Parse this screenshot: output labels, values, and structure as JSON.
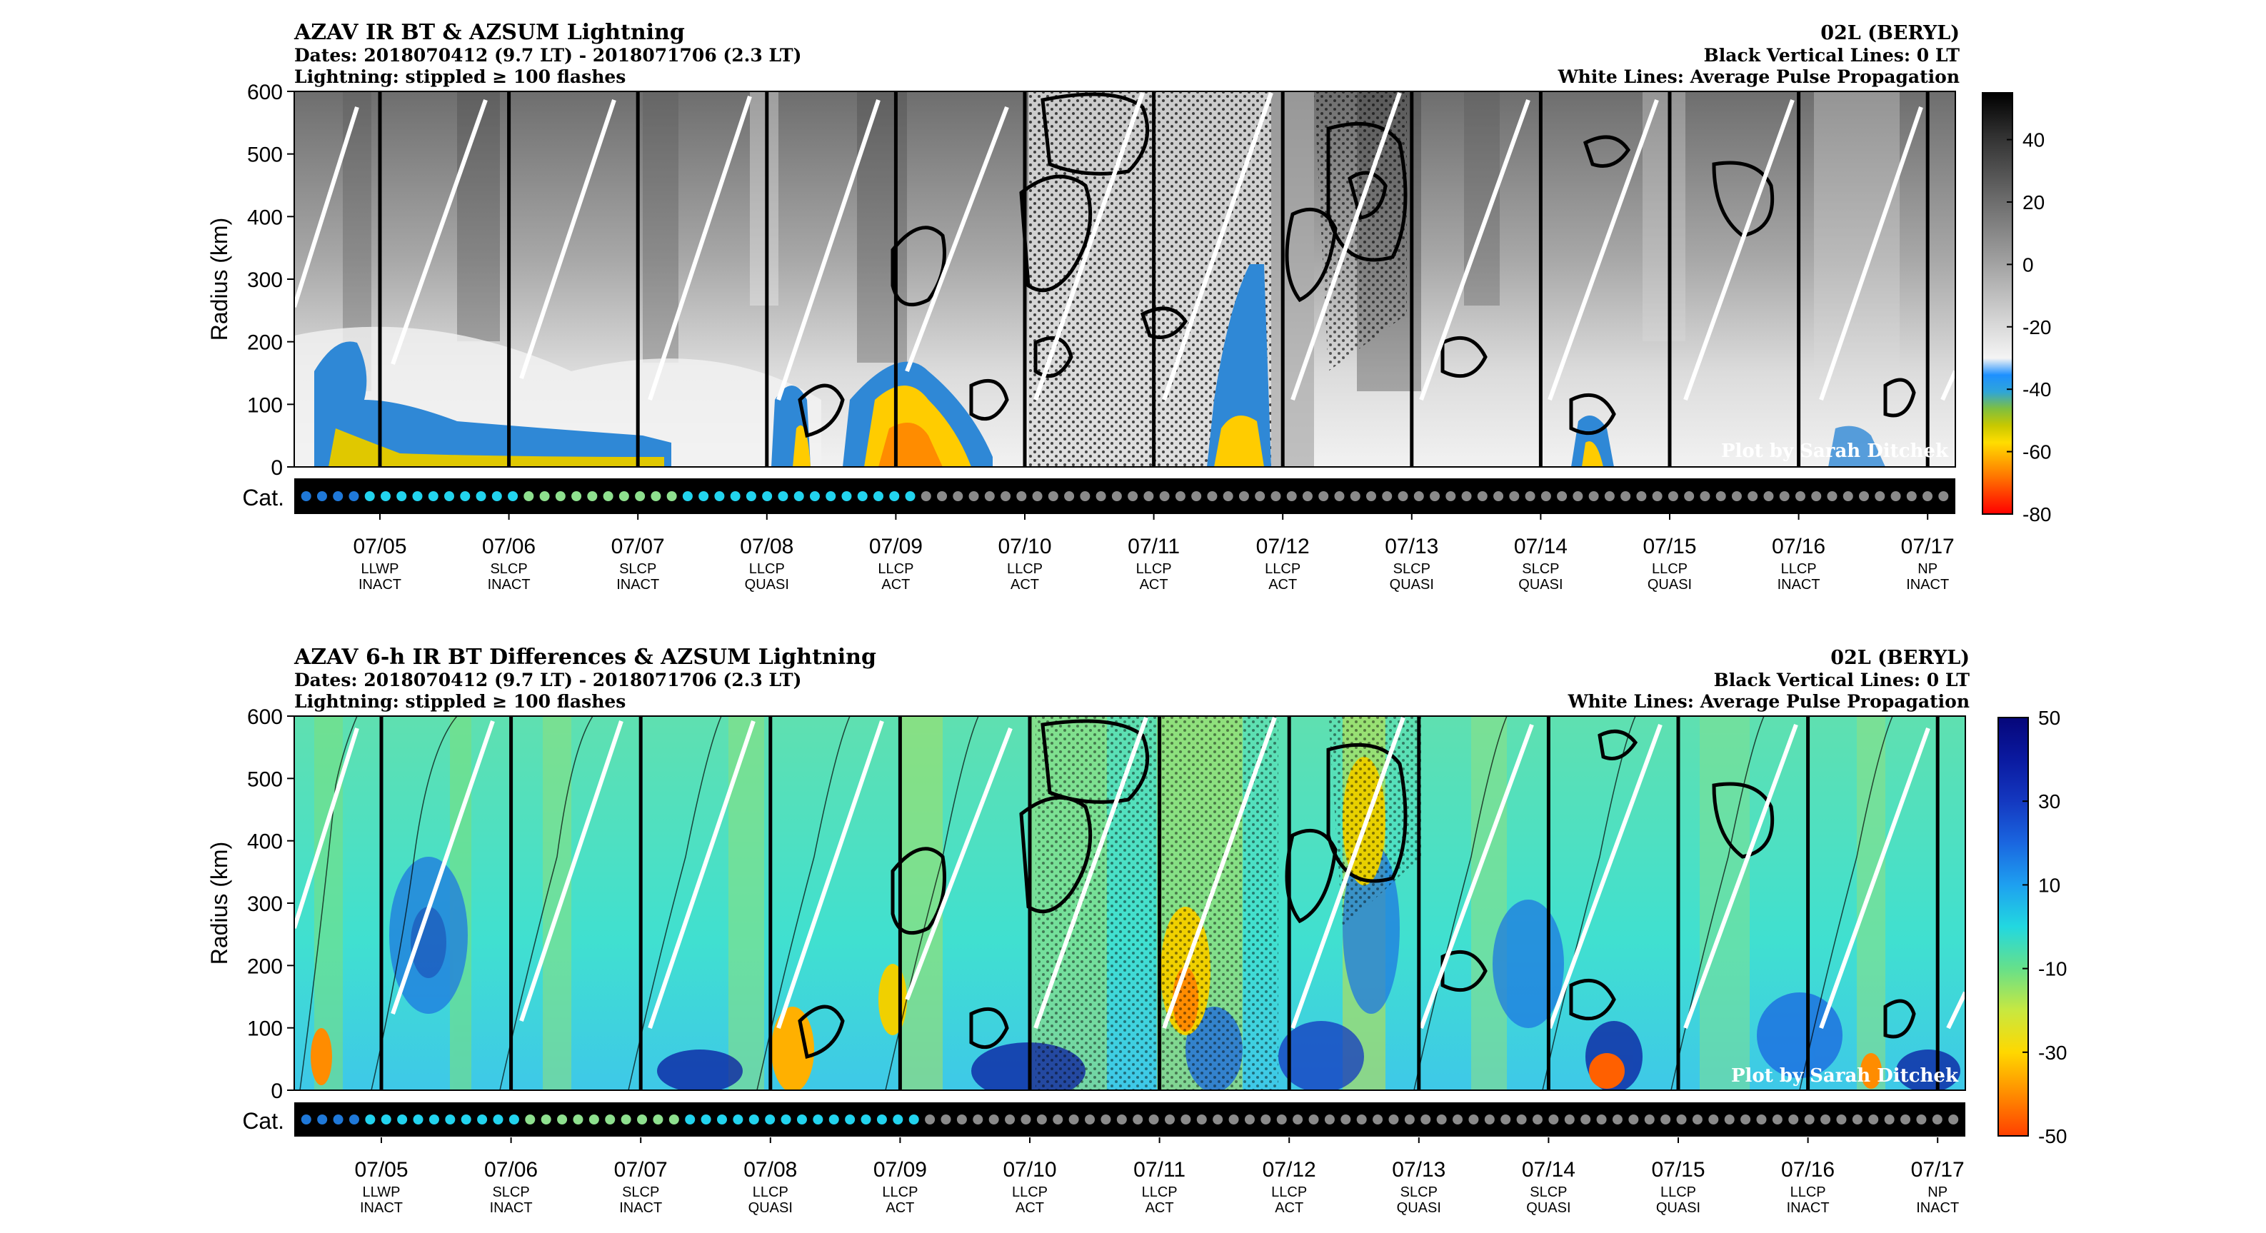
{
  "chart_data": [
    {
      "type": "heatmap",
      "title": "AZAV IR BT & AZSUM Lightning",
      "dates": "Dates: 2018070412 (9.7 LT) - 2018071706 (2.3 LT)",
      "lightning_note": "Lightning: stippled ≥ 100 flashes",
      "storm": "02L (BERYL)",
      "vertical_lines_note": "Black Vertical Lines: 0 LT",
      "white_lines_note": "White Lines: Average Pulse Propagation",
      "watermark": "Plot by Sarah Ditchek",
      "ylabel": "Radius (km)",
      "ylim": [
        0,
        600
      ],
      "yticks": [
        "0",
        "100",
        "200",
        "300",
        "400",
        "500",
        "600"
      ],
      "category_label": "Cat.",
      "colorbar": {
        "ticks": [
          "40",
          "20",
          "0",
          "-20",
          "-40",
          "-60",
          "-80"
        ],
        "range": [
          -80,
          55
        ]
      }
    },
    {
      "type": "heatmap",
      "title": "AZAV 6-h IR BT Differences & AZSUM Lightning",
      "dates": "Dates: 2018070412 (9.7 LT) - 2018071706 (2.3 LT)",
      "lightning_note": "Lightning: stippled ≥ 100 flashes",
      "storm": "02L (BERYL)",
      "vertical_lines_note": "Black Vertical Lines: 0 LT",
      "white_lines_note": "White Lines: Average Pulse Propagation",
      "watermark": "Plot by Sarah Ditchek",
      "ylabel": "Radius (km)",
      "ylim": [
        0,
        600
      ],
      "yticks": [
        "0",
        "100",
        "200",
        "300",
        "400",
        "500",
        "600"
      ],
      "category_label": "Cat.",
      "colorbar": {
        "ticks": [
          "50",
          "30",
          "10",
          "-10",
          "-30",
          "-50"
        ],
        "range": [
          -50,
          50
        ]
      }
    }
  ],
  "x_axis": {
    "days": [
      {
        "date": "07/05",
        "stage": "LLWP",
        "phase": "INACT"
      },
      {
        "date": "07/06",
        "stage": "SLCP",
        "phase": "INACT"
      },
      {
        "date": "07/07",
        "stage": "SLCP",
        "phase": "INACT"
      },
      {
        "date": "07/08",
        "stage": "LLCP",
        "phase": "QUASI"
      },
      {
        "date": "07/09",
        "stage": "LLCP",
        "phase": "ACT"
      },
      {
        "date": "07/10",
        "stage": "LLCP",
        "phase": "ACT"
      },
      {
        "date": "07/11",
        "stage": "LLCP",
        "phase": "ACT"
      },
      {
        "date": "07/12",
        "stage": "LLCP",
        "phase": "ACT"
      },
      {
        "date": "07/13",
        "stage": "SLCP",
        "phase": "QUASI"
      },
      {
        "date": "07/14",
        "stage": "SLCP",
        "phase": "QUASI"
      },
      {
        "date": "07/15",
        "stage": "LLCP",
        "phase": "QUASI"
      },
      {
        "date": "07/16",
        "stage": "LLCP",
        "phase": "INACT"
      },
      {
        "date": "07/17",
        "stage": "NP",
        "phase": "INACT"
      }
    ]
  },
  "category_colors": {
    "TD": "#1f78d8",
    "TS": "#22d3ee",
    "light": "#8ee08e",
    "none": "#8a8a8a"
  }
}
